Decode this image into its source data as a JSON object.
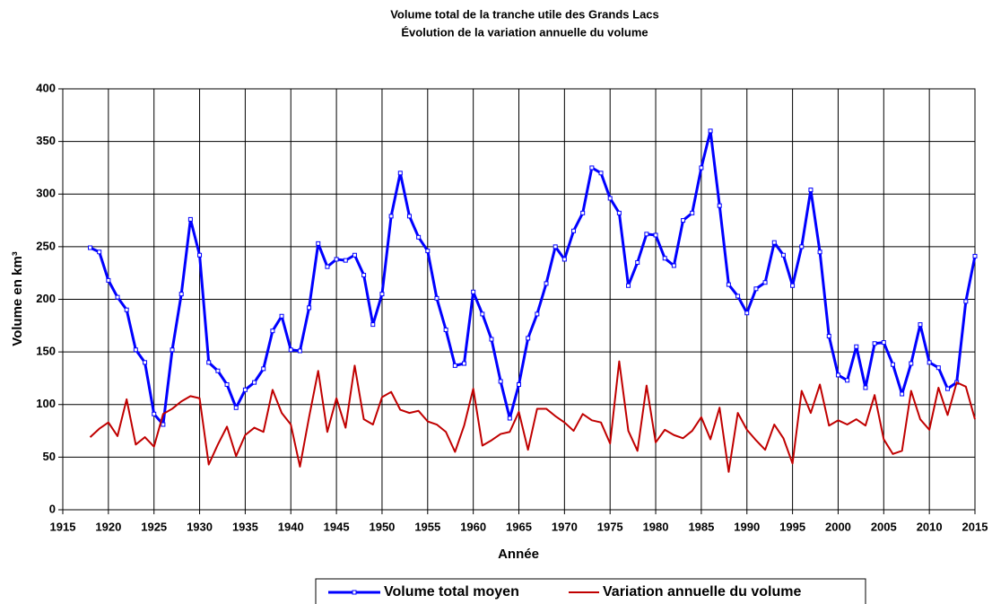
{
  "chart_data": {
    "type": "line",
    "title": "Volume total de la tranche utile des Grands Lacs",
    "subtitle": "Évolution de la variation annuelle du volume",
    "x_label": "Année",
    "y_label": "Volume en km³",
    "x": [
      1918,
      1919,
      1920,
      1921,
      1922,
      1923,
      1924,
      1925,
      1926,
      1927,
      1928,
      1929,
      1930,
      1931,
      1932,
      1933,
      1934,
      1935,
      1936,
      1937,
      1938,
      1939,
      1940,
      1941,
      1942,
      1943,
      1944,
      1945,
      1946,
      1947,
      1948,
      1949,
      1950,
      1951,
      1952,
      1953,
      1954,
      1955,
      1956,
      1957,
      1958,
      1959,
      1960,
      1961,
      1962,
      1963,
      1964,
      1965,
      1966,
      1967,
      1968,
      1969,
      1970,
      1971,
      1972,
      1973,
      1974,
      1975,
      1976,
      1977,
      1978,
      1979,
      1980,
      1981,
      1982,
      1983,
      1984,
      1985,
      1986,
      1987,
      1988,
      1989,
      1990,
      1991,
      1992,
      1993,
      1994,
      1995,
      1996,
      1997,
      1998,
      1999,
      2000,
      2001,
      2002,
      2003,
      2004,
      2005,
      2006,
      2007,
      2008,
      2009,
      2010,
      2011,
      2012,
      2013,
      2014,
      2015
    ],
    "series": [
      {
        "name": "Volume total moyen",
        "color": "#0000ff",
        "markers": true,
        "values": [
          249,
          245,
          218,
          202,
          190,
          152,
          140,
          91,
          81,
          152,
          205,
          276,
          242,
          140,
          132,
          119,
          97,
          114,
          121,
          134,
          170,
          184,
          152,
          151,
          192,
          253,
          231,
          238,
          237,
          242,
          223,
          176,
          205,
          279,
          320,
          279,
          259,
          246,
          201,
          171,
          137,
          139,
          207,
          186,
          162,
          122,
          87,
          119,
          163,
          186,
          215,
          250,
          238,
          265,
          282,
          325,
          320,
          296,
          282,
          213,
          235,
          262,
          261,
          239,
          232,
          275,
          282,
          325,
          360,
          289,
          214,
          203,
          187,
          210,
          216,
          254,
          242,
          213,
          250,
          304,
          245,
          165,
          128,
          123,
          155,
          116,
          158,
          159,
          138,
          110,
          139,
          176,
          140,
          135,
          115,
          121,
          198,
          241
        ]
      },
      {
        "name": "Variation annuelle du volume",
        "color": "#c00000",
        "markers": false,
        "values": [
          69,
          77,
          83,
          70,
          105,
          62,
          69,
          60,
          91,
          96,
          103,
          108,
          106,
          43,
          62,
          79,
          51,
          71,
          78,
          74,
          114,
          92,
          81,
          41,
          88,
          132,
          74,
          106,
          78,
          137,
          86,
          81,
          107,
          112,
          95,
          92,
          94,
          84,
          81,
          74,
          55,
          80,
          115,
          61,
          66,
          72,
          74,
          93,
          57,
          96,
          96,
          89,
          83,
          75,
          91,
          85,
          83,
          63,
          141,
          75,
          56,
          118,
          64,
          76,
          71,
          68,
          75,
          88,
          67,
          97,
          36,
          92,
          76,
          66,
          57,
          81,
          68,
          44,
          113,
          92,
          119,
          80,
          85,
          81,
          86,
          80,
          109,
          67,
          53,
          56,
          113,
          86,
          76,
          116,
          90,
          121,
          117,
          86
        ]
      }
    ],
    "xlim": [
      1915,
      2015
    ],
    "xticks": [
      1915,
      1920,
      1925,
      1930,
      1935,
      1940,
      1945,
      1950,
      1955,
      1960,
      1965,
      1970,
      1975,
      1980,
      1985,
      1990,
      1995,
      2000,
      2005,
      2010,
      2015
    ],
    "ylim": [
      0,
      400
    ],
    "yticks": [
      0,
      50,
      100,
      150,
      200,
      250,
      300,
      350,
      400
    ],
    "grid": true
  }
}
